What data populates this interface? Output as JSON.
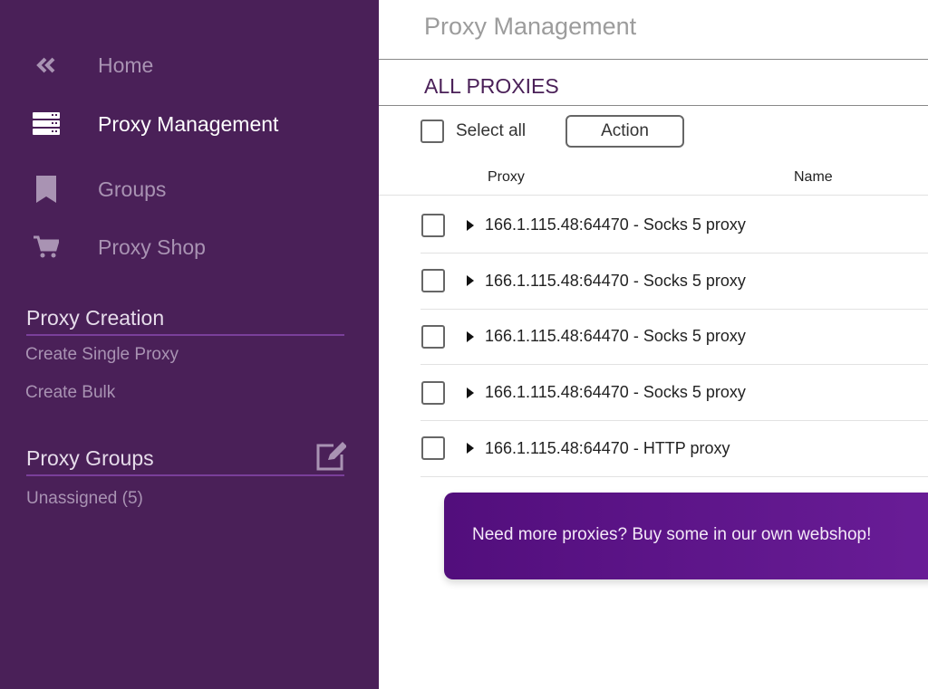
{
  "sidebar": {
    "nav": [
      {
        "label": "Home",
        "icon": "double-chevron-left-icon"
      },
      {
        "label": "Proxy Management",
        "icon": "server-icon",
        "active": true
      },
      {
        "label": "Groups",
        "icon": "bookmark-icon"
      },
      {
        "label": "Proxy Shop",
        "icon": "cart-icon"
      }
    ],
    "creation": {
      "title": "Proxy Creation",
      "links": [
        "Create Single Proxy",
        "Create Bulk"
      ]
    },
    "groups": {
      "title": "Proxy Groups",
      "edit_icon": "edit-icon",
      "links": [
        "Unassigned (5)"
      ]
    }
  },
  "main": {
    "title": "Proxy Management",
    "section": "ALL PROXIES",
    "select_all": "Select all",
    "action": "Action",
    "columns": [
      "Proxy",
      "Name"
    ],
    "rows": [
      "166.1.115.48:64470 - Socks 5 proxy",
      "166.1.115.48:64470 - Socks 5 proxy",
      "166.1.115.48:64470 - Socks 5 proxy",
      "166.1.115.48:64470 - Socks 5 proxy",
      "166.1.115.48:64470 - HTTP proxy"
    ],
    "banner": "Need more proxies? Buy some in our own webshop!"
  },
  "colors": {
    "sidebar": "#4a2058",
    "accent": "#5e1690"
  }
}
